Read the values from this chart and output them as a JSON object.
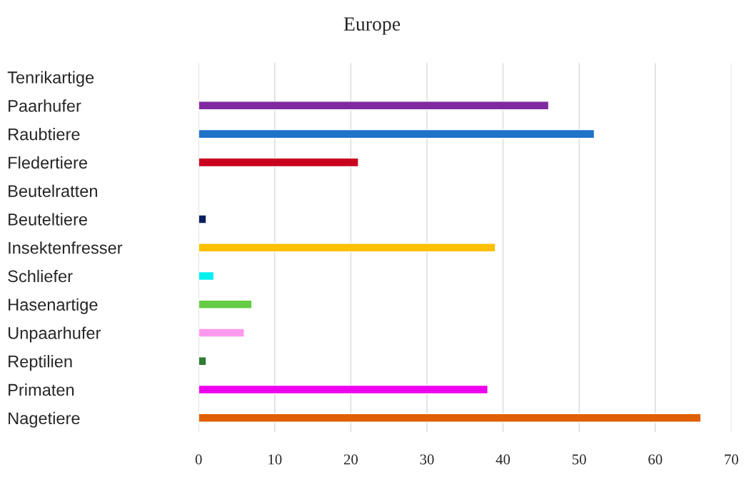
{
  "chart_data": {
    "type": "bar",
    "orientation": "horizontal",
    "title": "Europe",
    "categories": [
      "Tenrikartige",
      "Paarhufer",
      "Raubtiere",
      "Fledertiere",
      "Beutelratten",
      "Beuteltiere",
      "Insektenfresser",
      "Schliefer",
      "Hasenartige",
      "Unpaarhufer",
      "Reptilien",
      "Primaten",
      "Nagetiere"
    ],
    "values": [
      null,
      46,
      52,
      21,
      null,
      1,
      39,
      2,
      7,
      6,
      1,
      38,
      66
    ],
    "colors": [
      null,
      "#7f2aa0",
      "#1f73c8",
      "#c8001e",
      null,
      "#0a1f5f",
      "#ffc000",
      "#00f0f0",
      "#66cc44",
      "#ff99ee",
      "#2e7d32",
      "#ee00ee",
      "#e06000"
    ],
    "xlim": [
      0,
      70
    ],
    "xticks": [
      0,
      10,
      20,
      30,
      40,
      50,
      60,
      70
    ],
    "grid": "x"
  }
}
